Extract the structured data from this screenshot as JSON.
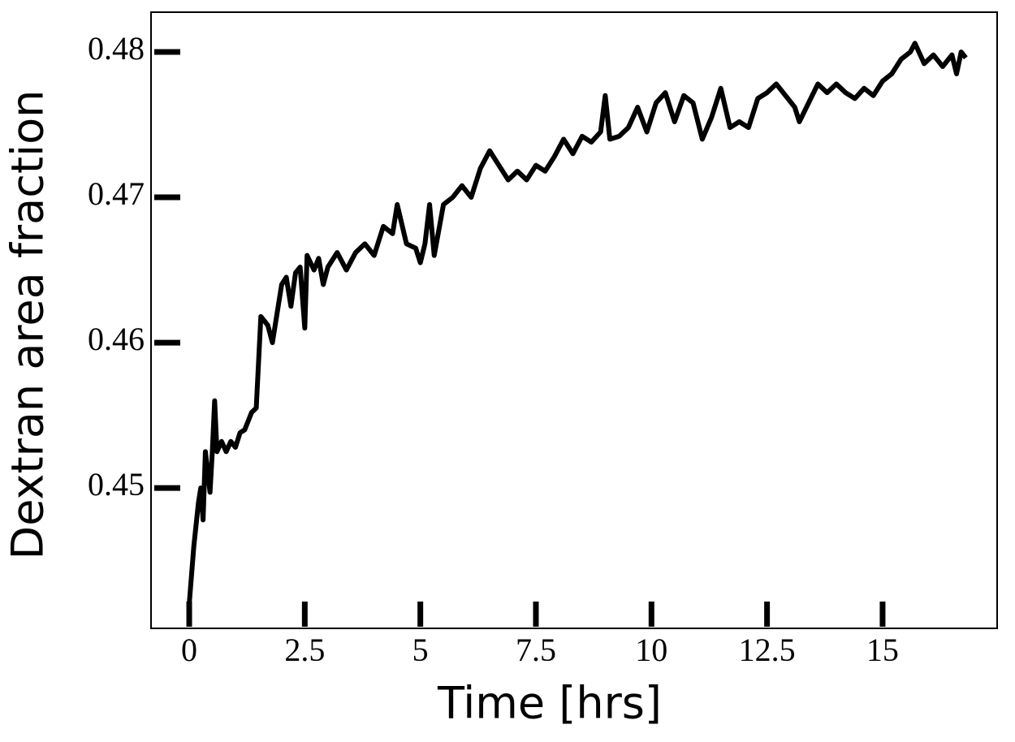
{
  "chart_data": {
    "type": "line",
    "xlabel": "Time [hrs]",
    "ylabel": "Dextran area fraction",
    "x": [
      0,
      0.1,
      0.2,
      0.25,
      0.3,
      0.35,
      0.45,
      0.5,
      0.55,
      0.6,
      0.7,
      0.8,
      0.9,
      1.0,
      1.1,
      1.2,
      1.35,
      1.45,
      1.55,
      1.7,
      1.8,
      1.9,
      2.0,
      2.1,
      2.2,
      2.3,
      2.4,
      2.5,
      2.55,
      2.7,
      2.8,
      2.9,
      3.0,
      3.2,
      3.4,
      3.6,
      3.8,
      4.0,
      4.2,
      4.4,
      4.5,
      4.7,
      4.9,
      5.0,
      5.1,
      5.2,
      5.3,
      5.5,
      5.7,
      5.9,
      6.1,
      6.3,
      6.5,
      6.7,
      6.9,
      7.1,
      7.3,
      7.5,
      7.7,
      7.9,
      8.1,
      8.3,
      8.5,
      8.7,
      8.9,
      9.0,
      9.1,
      9.3,
      9.5,
      9.7,
      9.9,
      10.1,
      10.3,
      10.5,
      10.7,
      10.9,
      11.1,
      11.3,
      11.5,
      11.7,
      11.9,
      12.1,
      12.3,
      12.5,
      12.7,
      12.9,
      13.1,
      13.2,
      13.4,
      13.6,
      13.8,
      14.0,
      14.2,
      14.4,
      14.6,
      14.8,
      15.0,
      15.2,
      15.4,
      15.6,
      15.7,
      15.9,
      16.1,
      16.3,
      16.5,
      16.6,
      16.7,
      16.8
    ],
    "series": [
      {
        "name": "Dextran area fraction",
        "color": "#000000",
        "values": [
          0.442,
          0.446,
          0.449,
          0.45,
          0.4478,
          0.4525,
          0.4497,
          0.4525,
          0.456,
          0.4525,
          0.4532,
          0.4525,
          0.4532,
          0.4528,
          0.4538,
          0.454,
          0.4552,
          0.4555,
          0.4618,
          0.4612,
          0.46,
          0.462,
          0.464,
          0.4645,
          0.4625,
          0.4648,
          0.4652,
          0.461,
          0.466,
          0.465,
          0.4658,
          0.464,
          0.4652,
          0.4662,
          0.465,
          0.4662,
          0.4668,
          0.466,
          0.468,
          0.4675,
          0.4695,
          0.4668,
          0.4665,
          0.4655,
          0.4668,
          0.4695,
          0.466,
          0.4695,
          0.47,
          0.4708,
          0.47,
          0.472,
          0.4732,
          0.4722,
          0.4712,
          0.4718,
          0.4712,
          0.4722,
          0.4718,
          0.4728,
          0.474,
          0.473,
          0.4742,
          0.4738,
          0.4745,
          0.477,
          0.474,
          0.4742,
          0.4748,
          0.4762,
          0.4745,
          0.4765,
          0.4772,
          0.4752,
          0.477,
          0.4765,
          0.474,
          0.4755,
          0.4775,
          0.4748,
          0.4752,
          0.4748,
          0.4768,
          0.4772,
          0.4778,
          0.477,
          0.4762,
          0.4752,
          0.4765,
          0.4778,
          0.4772,
          0.4778,
          0.4772,
          0.4768,
          0.4775,
          0.477,
          0.478,
          0.4785,
          0.4795,
          0.48,
          0.4806,
          0.4792,
          0.4798,
          0.479,
          0.4798,
          0.4785,
          0.48,
          0.4796
        ]
      }
    ],
    "xlim": [
      -0.826,
      17.478
    ],
    "ylim": [
      0.44034,
      0.48274
    ],
    "xticks": [
      0,
      2.5,
      5,
      7.5,
      10,
      12.5,
      15
    ],
    "yticks": [
      0.45,
      0.46,
      0.47,
      0.48
    ]
  }
}
